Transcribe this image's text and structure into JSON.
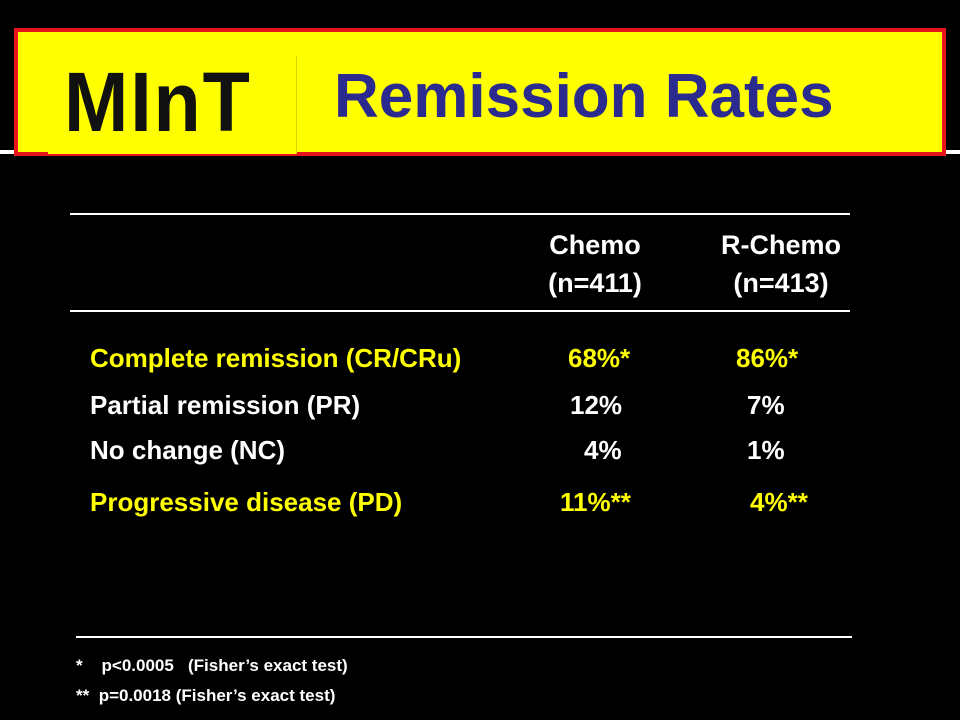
{
  "banner": {
    "logo": "MInT",
    "title": "Remission Rates"
  },
  "columns": [
    {
      "name": "Chemo",
      "n": "(n=411)"
    },
    {
      "name": "R-Chemo",
      "n": "(n=413)"
    }
  ],
  "rows": [
    {
      "label": "Complete remission (CR/CRu)",
      "chemo": "68%*",
      "rchemo": "86%*",
      "color": "#ffff00"
    },
    {
      "label": "Partial remission (PR)",
      "chemo": "12%",
      "rchemo": "7%",
      "color": "#ffffff"
    },
    {
      "label": "No change (NC)",
      "chemo": "4%",
      "rchemo": "1%",
      "color": "#ffffff"
    },
    {
      "label": "Progressive disease (PD)",
      "chemo": "11%**",
      "rchemo": "4%**",
      "color": "#ffff00"
    }
  ],
  "footnotes": [
    {
      "mark": "*",
      "text": "p<0.0005   (Fisher’s exact test)"
    },
    {
      "mark": "**",
      "text": "p=0.0018 (Fisher’s exact test)"
    }
  ],
  "colors": {
    "banner_bg": "#ffff00",
    "banner_border": "#e8141c",
    "title": "#2b2b8f",
    "highlight_row": "#ffff00",
    "background": "#000000"
  }
}
